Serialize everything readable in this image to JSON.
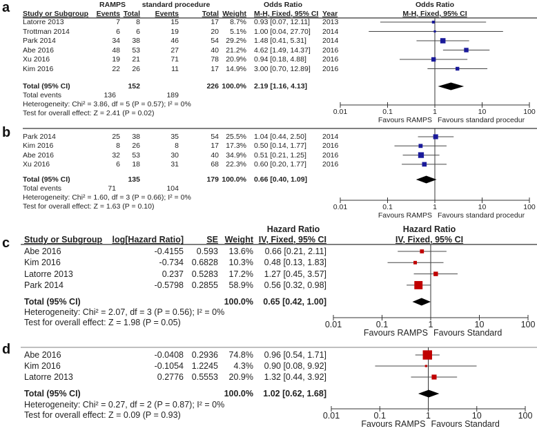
{
  "panels": [
    {
      "label": "a",
      "kind": "dichotomous",
      "color": "#1a1a9a",
      "header": {
        "group1": "RAMPS",
        "group2": "standard procedure",
        "effect": "Odds Ratio",
        "effect_plot": "Odds Ratio",
        "cols": [
          "Study or Subgroup",
          "Events",
          "Total",
          "Events",
          "Total",
          "Weight",
          "M-H, Fixed, 95% CI",
          "Year"
        ],
        "plot_method": "M-H, Fixed, 95% CI"
      },
      "studies": [
        {
          "name": "Latorre 2013",
          "e1": "7",
          "t1": "8",
          "e2": "15",
          "t2": "17",
          "weight": "8.7%",
          "ci": "0.93 [0.07, 12.11]",
          "year": "2013",
          "est": 0.93,
          "lo": 0.07,
          "hi": 12.11,
          "w": 8.7
        },
        {
          "name": "Trottman 2014",
          "e1": "6",
          "t1": "6",
          "e2": "19",
          "t2": "20",
          "weight": "5.1%",
          "ci": "1.00 [0.04, 27.70]",
          "year": "2014",
          "est": 1.0,
          "lo": 0.04,
          "hi": 27.7,
          "w": 5.1
        },
        {
          "name": "Park 2014",
          "e1": "34",
          "t1": "38",
          "e2": "46",
          "t2": "54",
          "weight": "29.2%",
          "ci": "1.48 [0.41, 5.31]",
          "year": "2014",
          "est": 1.48,
          "lo": 0.41,
          "hi": 5.31,
          "w": 29.2
        },
        {
          "name": "Abe 2016",
          "e1": "48",
          "t1": "53",
          "e2": "27",
          "t2": "40",
          "weight": "21.2%",
          "ci": "4.62 [1.49, 14.37]",
          "year": "2016",
          "est": 4.62,
          "lo": 1.49,
          "hi": 14.37,
          "w": 21.2
        },
        {
          "name": "Xu 2016",
          "e1": "19",
          "t1": "21",
          "e2": "71",
          "t2": "78",
          "weight": "20.9%",
          "ci": "0.94 [0.18, 4.88]",
          "year": "2016",
          "est": 0.94,
          "lo": 0.18,
          "hi": 4.88,
          "w": 20.9
        },
        {
          "name": "Kim 2016",
          "e1": "22",
          "t1": "26",
          "e2": "11",
          "t2": "17",
          "weight": "14.9%",
          "ci": "3.00 [0.70, 12.89]",
          "year": "2016",
          "est": 3.0,
          "lo": 0.7,
          "hi": 12.89,
          "w": 14.9
        }
      ],
      "total": {
        "label": "Total (95% CI)",
        "t1": "152",
        "t2": "226",
        "weight": "100.0%",
        "ci": "2.19 [1.16, 4.13]",
        "est": 2.19,
        "lo": 1.16,
        "hi": 4.13
      },
      "events": {
        "label": "Total events",
        "e1": "136",
        "e2": "189"
      },
      "heterogeneity": "Heterogeneity: Chi² = 3.86, df = 5 (P = 0.57); I² = 0%",
      "overall": "Test for overall effect: Z = 2.41 (P = 0.02)",
      "axis": {
        "ticks": [
          "0.01",
          "0.1",
          "1",
          "10",
          "100"
        ],
        "favours_left": "Favours RAMPS",
        "favours_right": "Favours standard procedur",
        "xlim": [
          0.01,
          100
        ],
        "scale": "log"
      }
    },
    {
      "label": "b",
      "kind": "dichotomous",
      "color": "#1a1a9a",
      "studies": [
        {
          "name": "Park 2014",
          "e1": "25",
          "t1": "38",
          "e2": "35",
          "t2": "54",
          "weight": "25.5%",
          "ci": "1.04 [0.44, 2.50]",
          "year": "2014",
          "est": 1.04,
          "lo": 0.44,
          "hi": 2.5,
          "w": 25.5
        },
        {
          "name": "Kim 2016",
          "e1": "8",
          "t1": "26",
          "e2": "8",
          "t2": "17",
          "weight": "17.3%",
          "ci": "0.50 [0.14, 1.77]",
          "year": "2016",
          "est": 0.5,
          "lo": 0.14,
          "hi": 1.77,
          "w": 17.3
        },
        {
          "name": "Abe 2016",
          "e1": "32",
          "t1": "53",
          "e2": "30",
          "t2": "40",
          "weight": "34.9%",
          "ci": "0.51 [0.21, 1.25]",
          "year": "2016",
          "est": 0.51,
          "lo": 0.21,
          "hi": 1.25,
          "w": 34.9
        },
        {
          "name": "Xu 2016",
          "e1": "6",
          "t1": "18",
          "e2": "31",
          "t2": "68",
          "weight": "22.3%",
          "ci": "0.60 [0.20, 1.77]",
          "year": "2016",
          "est": 0.6,
          "lo": 0.2,
          "hi": 1.77,
          "w": 22.3
        }
      ],
      "total": {
        "label": "Total (95% CI)",
        "t1": "135",
        "t2": "179",
        "weight": "100.0%",
        "ci": "0.66 [0.40, 1.09]",
        "est": 0.66,
        "lo": 0.4,
        "hi": 1.09
      },
      "events": {
        "label": "Total events",
        "e1": "71",
        "e2": "104"
      },
      "heterogeneity": "Heterogeneity: Chi² = 1.60, df = 3 (P = 0.66); I² = 0%",
      "overall": "Test for overall effect: Z = 1.63 (P = 0.10)",
      "axis": {
        "ticks": [
          "0.01",
          "0.1",
          "1",
          "10",
          "100"
        ],
        "favours_left": "Favours RAMPS",
        "favours_right": "Favours standard procedur",
        "xlim": [
          0.01,
          100
        ],
        "scale": "log"
      }
    },
    {
      "label": "c",
      "kind": "hr",
      "color": "#c00000",
      "header": {
        "effect": "Hazard Ratio",
        "effect_plot": "Hazard Ratio",
        "cols": [
          "Study or Subgroup",
          "log[Hazard Ratio]",
          "SE",
          "Weight",
          "IV, Fixed, 95% CI"
        ],
        "plot_method": "IV, Fixed, 95% CI"
      },
      "studies": [
        {
          "name": "Abe 2016",
          "loghr": "-0.4155",
          "se": "0.593",
          "weight": "13.6%",
          "ci": "0.66 [0.21, 2.11]",
          "est": 0.66,
          "lo": 0.21,
          "hi": 2.11,
          "w": 13.6
        },
        {
          "name": "Kim 2016",
          "loghr": "-0.734",
          "se": "0.6828",
          "weight": "10.3%",
          "ci": "0.48 [0.13, 1.83]",
          "est": 0.48,
          "lo": 0.13,
          "hi": 1.83,
          "w": 10.3
        },
        {
          "name": "Latorre 2013",
          "loghr": "0.237",
          "se": "0.5283",
          "weight": "17.2%",
          "ci": "1.27 [0.45, 3.57]",
          "est": 1.27,
          "lo": 0.45,
          "hi": 3.57,
          "w": 17.2
        },
        {
          "name": "Park 2014",
          "loghr": "-0.5798",
          "se": "0.2855",
          "weight": "58.9%",
          "ci": "0.56 [0.32, 0.98]",
          "est": 0.56,
          "lo": 0.32,
          "hi": 0.98,
          "w": 58.9
        }
      ],
      "total": {
        "label": "Total (95% CI)",
        "weight": "100.0%",
        "ci": "0.65 [0.42, 1.00]",
        "est": 0.65,
        "lo": 0.42,
        "hi": 1.0
      },
      "heterogeneity": "Heterogeneity: Chi² = 2.07, df = 3 (P = 0.56); I² = 0%",
      "overall": "Test for overall effect: Z = 1.98 (P = 0.05)",
      "axis": {
        "ticks": [
          "0.01",
          "0.1",
          "1",
          "10",
          "100"
        ],
        "favours_left": "Favours RAMPS",
        "favours_right": "Favours Standard",
        "xlim": [
          0.01,
          100
        ],
        "scale": "log"
      }
    },
    {
      "label": "d",
      "kind": "hr",
      "color": "#c00000",
      "studies": [
        {
          "name": "Abe 2016",
          "loghr": "-0.0408",
          "se": "0.2936",
          "weight": "74.8%",
          "ci": "0.96 [0.54, 1.71]",
          "est": 0.96,
          "lo": 0.54,
          "hi": 1.71,
          "w": 74.8
        },
        {
          "name": "Kim 2016",
          "loghr": "-0.1054",
          "se": "1.2245",
          "weight": "4.3%",
          "ci": "0.90 [0.08, 9.92]",
          "est": 0.9,
          "lo": 0.08,
          "hi": 9.92,
          "w": 4.3
        },
        {
          "name": "Latorre 2013",
          "loghr": "0.2776",
          "se": "0.5553",
          "weight": "20.9%",
          "ci": "1.32 [0.44, 3.92]",
          "est": 1.32,
          "lo": 0.44,
          "hi": 3.92,
          "w": 20.9
        }
      ],
      "total": {
        "label": "Total (95% CI)",
        "weight": "100.0%",
        "ci": "1.02 [0.62, 1.68]",
        "est": 1.02,
        "lo": 0.62,
        "hi": 1.68
      },
      "heterogeneity": "Heterogeneity: Chi² = 0.27, df = 2 (P = 0.87); I² = 0%",
      "overall": "Test for overall effect: Z = 0.09 (P = 0.93)",
      "axis": {
        "ticks": [
          "0.01",
          "0.1",
          "1",
          "10",
          "100"
        ],
        "favours_left": "Favours RAMPS",
        "favours_right": "Favours Standard",
        "xlim": [
          0.01,
          100
        ],
        "scale": "log"
      }
    }
  ],
  "chart_data": [
    {
      "type": "forest",
      "panel": "a",
      "title": "Odds Ratio",
      "method": "M-H, Fixed, 95% CI",
      "xscale": "log",
      "xlim": [
        0.01,
        100
      ],
      "categories": [
        "Latorre 2013",
        "Trottman 2014",
        "Park 2014",
        "Abe 2016",
        "Xu 2016",
        "Kim 2016",
        "Total (95% CI)"
      ],
      "estimate": [
        0.93,
        1.0,
        1.48,
        4.62,
        0.94,
        3.0,
        2.19
      ],
      "lower": [
        0.07,
        0.04,
        0.41,
        1.49,
        0.18,
        0.7,
        1.16
      ],
      "upper": [
        12.11,
        27.7,
        5.31,
        14.37,
        4.88,
        12.89,
        4.13
      ],
      "weights": [
        8.7,
        5.1,
        29.2,
        21.2,
        20.9,
        14.9,
        100
      ]
    },
    {
      "type": "forest",
      "panel": "b",
      "title": "Odds Ratio",
      "xscale": "log",
      "xlim": [
        0.01,
        100
      ],
      "categories": [
        "Park 2014",
        "Kim 2016",
        "Abe 2016",
        "Xu 2016",
        "Total (95% CI)"
      ],
      "estimate": [
        1.04,
        0.5,
        0.51,
        0.6,
        0.66
      ],
      "lower": [
        0.44,
        0.14,
        0.21,
        0.2,
        0.4
      ],
      "upper": [
        2.5,
        1.77,
        1.25,
        1.77,
        1.09
      ],
      "weights": [
        25.5,
        17.3,
        34.9,
        22.3,
        100
      ]
    },
    {
      "type": "forest",
      "panel": "c",
      "title": "Hazard Ratio",
      "method": "IV, Fixed, 95% CI",
      "xscale": "log",
      "xlim": [
        0.01,
        100
      ],
      "categories": [
        "Abe 2016",
        "Kim 2016",
        "Latorre 2013",
        "Park 2014",
        "Total (95% CI)"
      ],
      "estimate": [
        0.66,
        0.48,
        1.27,
        0.56,
        0.65
      ],
      "lower": [
        0.21,
        0.13,
        0.45,
        0.32,
        0.42
      ],
      "upper": [
        2.11,
        1.83,
        3.57,
        0.98,
        1.0
      ],
      "weights": [
        13.6,
        10.3,
        17.2,
        58.9,
        100
      ]
    },
    {
      "type": "forest",
      "panel": "d",
      "title": "Hazard Ratio",
      "xscale": "log",
      "xlim": [
        0.01,
        100
      ],
      "categories": [
        "Abe 2016",
        "Kim 2016",
        "Latorre 2013",
        "Total (95% CI)"
      ],
      "estimate": [
        0.96,
        0.9,
        1.32,
        1.02
      ],
      "lower": [
        0.54,
        0.08,
        0.44,
        0.62
      ],
      "upper": [
        1.71,
        9.92,
        3.92,
        1.68
      ],
      "weights": [
        74.8,
        4.3,
        20.9,
        100
      ]
    }
  ]
}
